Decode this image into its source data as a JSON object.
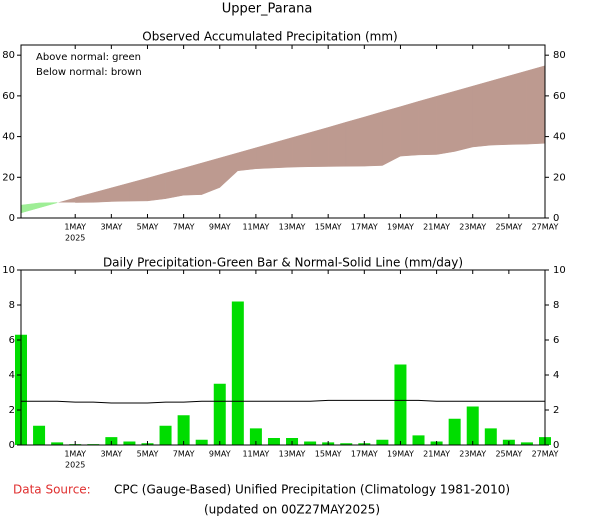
{
  "title": "Upper_Parana",
  "chart_data": [
    {
      "type": "area",
      "title": "Observed Accumulated Precipitation (mm)",
      "annotations": [
        "Above normal: green",
        "Below normal: brown"
      ],
      "categories": [
        null,
        null,
        null,
        "1MAY",
        null,
        "3MAY",
        null,
        "5MAY",
        null,
        "7MAY",
        null,
        "9MAY",
        null,
        "11MAY",
        null,
        "13MAY",
        null,
        "15MAY",
        null,
        "17MAY",
        null,
        "19MAY",
        null,
        "21MAY",
        null,
        "23MAY",
        null,
        "25MAY",
        null,
        "27MAY"
      ],
      "year_label": "2025",
      "observed_values": [
        6.3,
        7.4,
        7.6,
        7.6,
        7.7,
        8.1,
        8.3,
        8.4,
        9.5,
        11.2,
        11.5,
        15.0,
        23.2,
        24.2,
        24.6,
        25.0,
        25.2,
        25.3,
        25.4,
        25.5,
        25.8,
        30.4,
        31.0,
        31.2,
        32.7,
        34.9,
        35.8,
        36.1,
        36.3,
        36.7
      ],
      "normal_values": [
        2.5,
        5.0,
        7.5,
        10.0,
        12.4,
        14.8,
        17.2,
        19.6,
        22.1,
        24.5,
        27.0,
        29.5,
        32.0,
        34.5,
        37.0,
        39.5,
        42.0,
        44.5,
        47.1,
        49.6,
        52.2,
        54.7,
        57.3,
        59.8,
        62.3,
        64.8,
        67.3,
        69.8,
        72.3,
        74.8
      ],
      "above_color": "#9eee96",
      "below_color": "#bd9a90",
      "ylim": [
        0,
        85
      ],
      "yticks": [
        0,
        20,
        40,
        60,
        80
      ]
    },
    {
      "type": "bar",
      "title": "Daily Precipitation-Green Bar & Normal-Solid Line (mm/day)",
      "categories": [
        null,
        null,
        null,
        "1MAY",
        null,
        "3MAY",
        null,
        "5MAY",
        null,
        "7MAY",
        null,
        "9MAY",
        null,
        "11MAY",
        null,
        "13MAY",
        null,
        "15MAY",
        null,
        "17MAY",
        null,
        "19MAY",
        null,
        "21MAY",
        null,
        "23MAY",
        null,
        "25MAY",
        null,
        "27MAY"
      ],
      "year_label": "2025",
      "values": [
        6.3,
        1.1,
        0.15,
        0.05,
        0.05,
        0.45,
        0.2,
        0.1,
        1.1,
        1.7,
        0.3,
        3.5,
        8.2,
        0.95,
        0.4,
        0.4,
        0.2,
        0.15,
        0.1,
        0.1,
        0.3,
        4.6,
        0.55,
        0.2,
        1.5,
        2.2,
        0.95,
        0.3,
        0.15,
        0.45
      ],
      "normal_values": [
        2.5,
        2.5,
        2.5,
        2.45,
        2.45,
        2.4,
        2.4,
        2.4,
        2.45,
        2.45,
        2.5,
        2.5,
        2.5,
        2.5,
        2.5,
        2.5,
        2.5,
        2.55,
        2.55,
        2.55,
        2.55,
        2.55,
        2.55,
        2.5,
        2.5,
        2.5,
        2.5,
        2.5,
        2.5,
        2.5
      ],
      "color": "#00dd00",
      "line_color": "#000000",
      "ylim": [
        0,
        10
      ],
      "yticks": [
        0,
        2,
        4,
        6,
        8,
        10
      ]
    }
  ],
  "footer": {
    "source_label": "Data Source:",
    "source": "CPC (Gauge-Based) Unified Precipitation (Climatology 1981-2010)",
    "updated": "(updated on 00Z27MAY2025)"
  }
}
